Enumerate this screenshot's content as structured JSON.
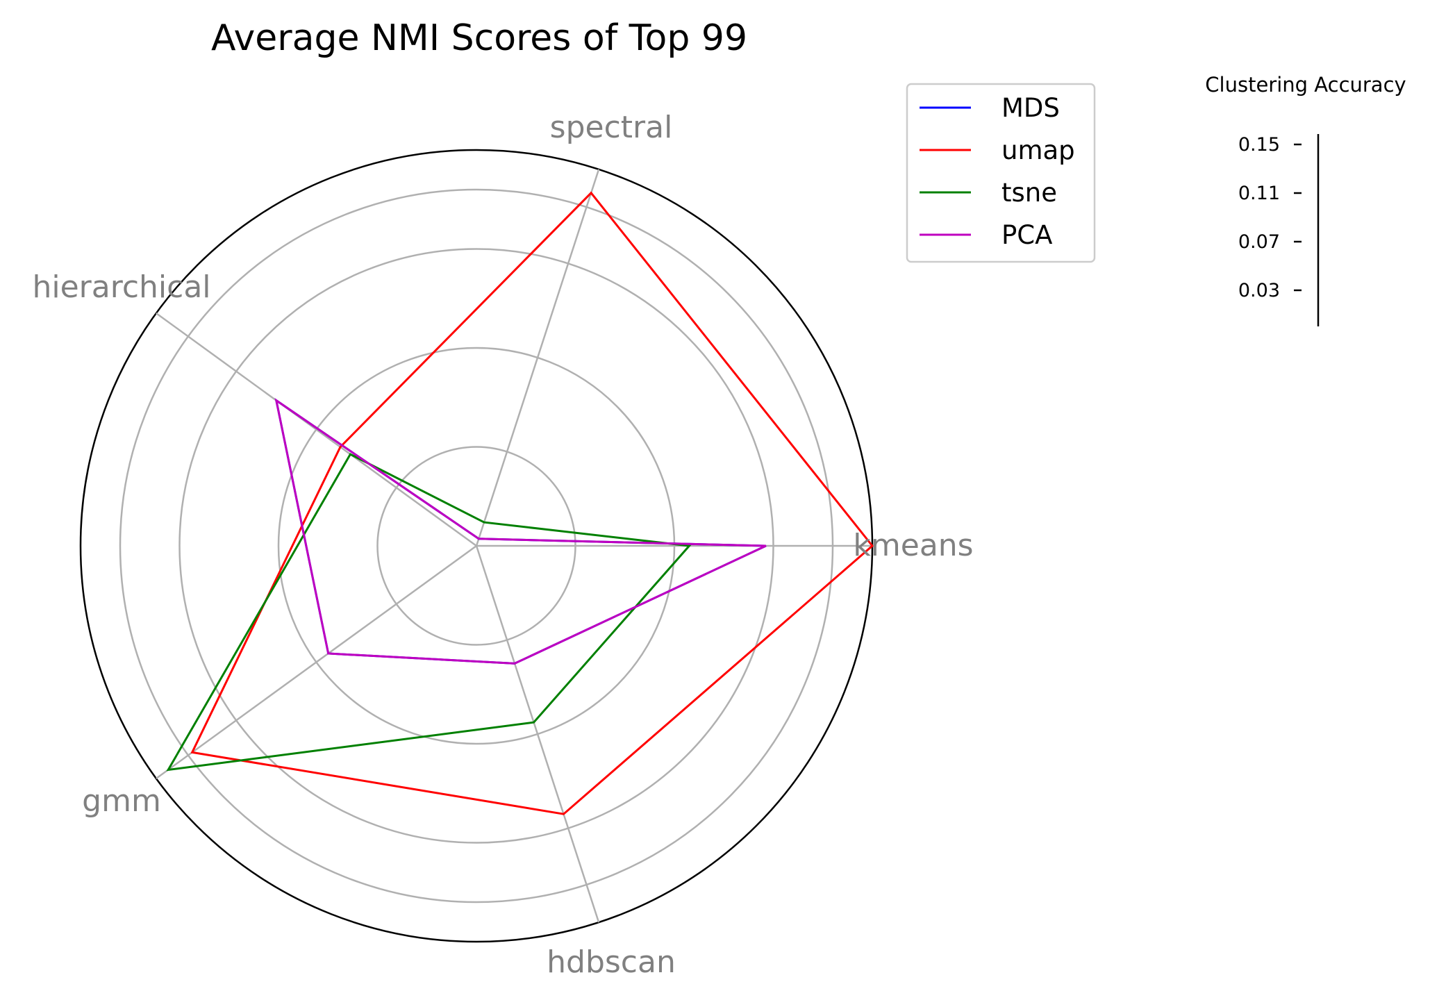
{
  "chart_data": {
    "type": "radar",
    "title": "Average NMI Scores of Top 99",
    "axes": [
      "kmeans",
      "spectral",
      "hierarchical",
      "gmm",
      "hdbscan"
    ],
    "rlim": [
      0,
      0.16
    ],
    "grid": true,
    "series": [
      {
        "name": "MDS",
        "color": "#0000ff",
        "values": [
          0.117,
          0.003,
          0.1,
          0.074,
          0.05
        ]
      },
      {
        "name": "umap",
        "color": "#ff0000",
        "values": [
          0.16,
          0.15,
          0.068,
          0.142,
          0.114
        ]
      },
      {
        "name": "tsne",
        "color": "#008000",
        "values": [
          0.086,
          0.01,
          0.063,
          0.154,
          0.075
        ]
      },
      {
        "name": "PCA",
        "color": "#bf00bf",
        "values": [
          0.117,
          0.003,
          0.1,
          0.074,
          0.05
        ]
      }
    ],
    "legend": {
      "placement": "top-right",
      "entries": [
        "MDS",
        "umap",
        "tsne",
        "PCA"
      ]
    },
    "scale": {
      "title": "Clustering Accuracy",
      "ticks": [
        "0.15",
        "0.11",
        "0.07",
        "0.03"
      ]
    }
  }
}
